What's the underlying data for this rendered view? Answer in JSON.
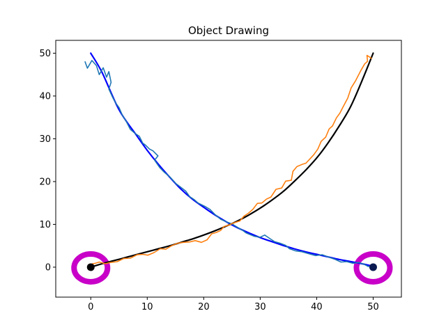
{
  "chart_data": {
    "type": "line",
    "title": "Object Drawing",
    "xlabel": "",
    "ylabel": "",
    "xlim": [
      -6.2,
      55
    ],
    "ylim": [
      -7,
      53
    ],
    "xticks": [
      0,
      10,
      20,
      30,
      40,
      50
    ],
    "yticks": [
      0,
      10,
      20,
      30,
      40,
      50
    ],
    "grid": false,
    "series": [
      {
        "kind": "smooth-curve",
        "color": "#0000ff",
        "points": [
          [
            0,
            50
          ],
          [
            2,
            45.5
          ],
          [
            5,
            36.8
          ],
          [
            8,
            31
          ],
          [
            10,
            27.3
          ],
          [
            12,
            24
          ],
          [
            14,
            21
          ],
          [
            16,
            18.2
          ],
          [
            18,
            15.9
          ],
          [
            20,
            14
          ],
          [
            22,
            12.2
          ],
          [
            24,
            10.6
          ],
          [
            26,
            9.2
          ],
          [
            28,
            8
          ],
          [
            30,
            6.9
          ],
          [
            32,
            6
          ],
          [
            34,
            5.1
          ],
          [
            36,
            4.3
          ],
          [
            38,
            3.6
          ],
          [
            40,
            3
          ],
          [
            42,
            2.4
          ],
          [
            44,
            1.8
          ],
          [
            46,
            1.3
          ],
          [
            48,
            0.8
          ],
          [
            50,
            0.2
          ]
        ]
      },
      {
        "kind": "smooth-curve",
        "color": "#000000",
        "points": [
          [
            0,
            0
          ],
          [
            2,
            0.8
          ],
          [
            4,
            1.5
          ],
          [
            6,
            2.2
          ],
          [
            8,
            2.9
          ],
          [
            10,
            3.6
          ],
          [
            12,
            4.3
          ],
          [
            14,
            5
          ],
          [
            16,
            5.8
          ],
          [
            18,
            6.6
          ],
          [
            20,
            7.5
          ],
          [
            22,
            8.5
          ],
          [
            24,
            9.6
          ],
          [
            26,
            10.8
          ],
          [
            28,
            12.2
          ],
          [
            30,
            13.8
          ],
          [
            32,
            15.6
          ],
          [
            34,
            17.6
          ],
          [
            36,
            20
          ],
          [
            38,
            22.6
          ],
          [
            40,
            25.5
          ],
          [
            42,
            29
          ],
          [
            44,
            33
          ],
          [
            46,
            37.5
          ],
          [
            48,
            43.5
          ],
          [
            50,
            50
          ]
        ]
      },
      {
        "kind": "hand-drawn",
        "color": "#1f77b4",
        "points": [
          [
            -1,
            48
          ],
          [
            -0.6,
            46.5
          ],
          [
            0.2,
            48.3
          ],
          [
            1,
            47.1
          ],
          [
            1.5,
            45
          ],
          [
            2.2,
            46.6
          ],
          [
            2.8,
            44.4
          ],
          [
            3.2,
            45.7
          ],
          [
            3.6,
            43.2
          ],
          [
            3.2,
            41.6
          ],
          [
            3.9,
            39.6
          ],
          [
            4.4,
            38.4
          ],
          [
            5,
            37.3
          ],
          [
            5.6,
            35.5
          ],
          [
            6.3,
            34
          ],
          [
            7,
            32.2
          ],
          [
            7.8,
            31.3
          ],
          [
            8.6,
            30.6
          ],
          [
            9.2,
            29
          ],
          [
            9.7,
            28.5
          ],
          [
            10.4,
            27.6
          ],
          [
            11,
            27.2
          ],
          [
            11.9,
            26
          ],
          [
            11.3,
            25
          ],
          [
            12.2,
            23.3
          ],
          [
            13,
            22.2
          ],
          [
            14,
            21.1
          ],
          [
            15.1,
            19.5
          ],
          [
            15.9,
            18.7
          ],
          [
            16.8,
            17.8
          ],
          [
            17.5,
            16.5
          ],
          [
            18.3,
            15.8
          ],
          [
            19,
            15
          ],
          [
            20.2,
            14.2
          ],
          [
            21.1,
            13.5
          ],
          [
            22,
            12.3
          ],
          [
            23,
            11.2
          ],
          [
            24,
            10.6
          ],
          [
            25,
            10.1
          ],
          [
            26,
            9.3
          ],
          [
            27,
            8.5
          ],
          [
            27.5,
            8
          ],
          [
            29,
            7.2
          ],
          [
            30,
            7
          ],
          [
            30.8,
            7.5
          ],
          [
            31.8,
            6.6
          ],
          [
            32.5,
            6
          ],
          [
            33.5,
            5.6
          ],
          [
            34.5,
            5.1
          ],
          [
            35.2,
            4.3
          ],
          [
            36.3,
            3.8
          ],
          [
            37.4,
            3.6
          ],
          [
            38.7,
            3.1
          ],
          [
            39.8,
            2.7
          ],
          [
            41,
            2.9
          ],
          [
            42.2,
            2.3
          ],
          [
            43.3,
            1.8
          ],
          [
            44.3,
            1.2
          ],
          [
            45.3,
            1.3
          ],
          [
            46.4,
            0.9
          ],
          [
            47.5,
            1.1
          ],
          [
            48.5,
            0.6
          ],
          [
            49.2,
            0.1
          ]
        ]
      },
      {
        "kind": "hand-drawn",
        "color": "#ff7f0e",
        "points": [
          [
            0.4,
            0.1
          ],
          [
            0.3,
            0.8
          ],
          [
            0.8,
            0.9
          ],
          [
            1.5,
            1.2
          ],
          [
            2.6,
            0.8
          ],
          [
            3.5,
            1.1
          ],
          [
            4.7,
            1.3
          ],
          [
            5.8,
            2
          ],
          [
            7,
            2.1
          ],
          [
            8.2,
            2.9
          ],
          [
            9.2,
            3
          ],
          [
            10.1,
            2.8
          ],
          [
            11.2,
            3.4
          ],
          [
            12.3,
            4.3
          ],
          [
            13.3,
            4.2
          ],
          [
            14.3,
            5
          ],
          [
            15.4,
            5.6
          ],
          [
            16.4,
            5.8
          ],
          [
            17.5,
            5.9
          ],
          [
            18.5,
            6.2
          ],
          [
            19.6,
            5.8
          ],
          [
            20.6,
            6.4
          ],
          [
            21.4,
            7.8
          ],
          [
            22.2,
            8.1
          ],
          [
            23,
            8.6
          ],
          [
            23.6,
            9.5
          ],
          [
            24.4,
            9.8
          ],
          [
            25.2,
            10.3
          ],
          [
            26.4,
            10.8
          ],
          [
            27.1,
            11.9
          ],
          [
            27.9,
            12.6
          ],
          [
            28.7,
            13.5
          ],
          [
            29.5,
            14.9
          ],
          [
            30.3,
            15
          ],
          [
            31.1,
            15.9
          ],
          [
            31.9,
            16.4
          ],
          [
            32.8,
            18.2
          ],
          [
            33.8,
            18.5
          ],
          [
            34.5,
            20.1
          ],
          [
            35.5,
            20.3
          ],
          [
            35.8,
            22.4
          ],
          [
            36.5,
            23.5
          ],
          [
            37.4,
            24
          ],
          [
            38.1,
            24.3
          ],
          [
            38.8,
            25.3
          ],
          [
            39.5,
            26.3
          ],
          [
            40.2,
            27.6
          ],
          [
            40.8,
            29.4
          ],
          [
            41.6,
            30.4
          ],
          [
            42.2,
            32.3
          ],
          [
            42.8,
            33
          ],
          [
            43.5,
            34.9
          ],
          [
            44.1,
            36
          ],
          [
            44.7,
            37.5
          ],
          [
            45.5,
            39.5
          ],
          [
            46.1,
            41.9
          ],
          [
            46.9,
            43.6
          ],
          [
            47.8,
            45.9
          ],
          [
            48.5,
            47.5
          ],
          [
            49,
            48.1
          ],
          [
            48.9,
            49.5
          ],
          [
            49.7,
            48.8
          ]
        ]
      }
    ],
    "markers": [
      {
        "name": "start-marker",
        "x": 0,
        "y": 0,
        "color": "#000000",
        "ring_color": "#c800c8"
      },
      {
        "name": "end-marker",
        "x": 50,
        "y": 0,
        "color": "#0a1a50",
        "ring_color": "#c800c8"
      }
    ]
  }
}
